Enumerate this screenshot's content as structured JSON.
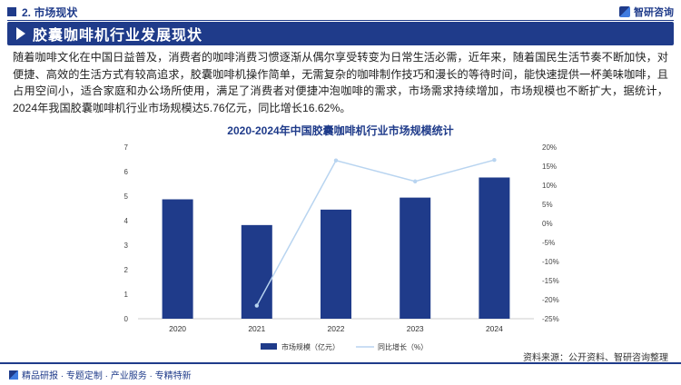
{
  "header": {
    "section": "2. 市场现状",
    "brand": "智研咨询",
    "brand_icon": "zhiyan-logo-icon"
  },
  "title": "胶囊咖啡机行业发展现状",
  "paragraph": "随着咖啡文化在中国日益普及，消费者的咖啡消费习惯逐渐从偶尔享受转变为日常生活必需，近年来，随着国民生活节奏不断加快，对便捷、高效的生活方式有较高追求，胶囊咖啡机操作简单，无需复杂的咖啡制作技巧和漫长的等待时间，能快速提供一杯美味咖啡，且占用空间小，适合家庭和办公场所使用，满足了消费者对便捷冲泡咖啡的需求，市场需求持续增加，市场规模也不断扩大，据统计，2024年我国胶囊咖啡机行业市场规模达5.76亿元，同比增长16.62%。",
  "chart_data": {
    "type": "bar+line",
    "title": "2020-2024年中国胶囊咖啡机行业市场规模统计",
    "categories": [
      "2020",
      "2021",
      "2022",
      "2023",
      "2024"
    ],
    "series": [
      {
        "name": "市场规模（亿元）",
        "type": "bar",
        "axis": "left",
        "values": [
          4.87,
          3.82,
          4.45,
          4.94,
          5.76
        ],
        "color": "#1f3b8a"
      },
      {
        "name": "同比增长（%）",
        "type": "line",
        "axis": "right",
        "values": [
          null,
          -21.56,
          16.49,
          11.01,
          16.62
        ],
        "color": "#b8d4f0"
      }
    ],
    "y_left": {
      "min": 0,
      "max": 7,
      "ticks": [
        "0",
        "1",
        "2",
        "3",
        "4",
        "5",
        "6",
        "7"
      ]
    },
    "y_right": {
      "min": -25,
      "max": 20,
      "ticks": [
        "-25%",
        "-20%",
        "-15%",
        "-10%",
        "-5%",
        "0%",
        "5%",
        "10%",
        "15%",
        "20%"
      ]
    },
    "legend": "bottom-center"
  },
  "footer": {
    "tagline": "精品研报 · 专题定制 · 产业服务 · 专精特新",
    "source": "资料来源：公开资料、智研咨询整理"
  }
}
